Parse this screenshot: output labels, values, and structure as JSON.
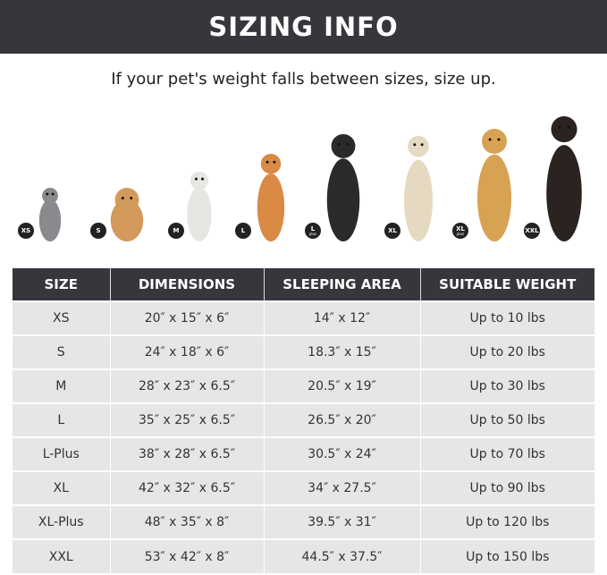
{
  "banner": {
    "title": "SIZING INFO"
  },
  "subtitle": "If your pet's weight falls between sizes, size up.",
  "pets": [
    {
      "badge": "XS",
      "plus": "",
      "animal": "cat",
      "color": "#8a8a8e"
    },
    {
      "badge": "S",
      "plus": "",
      "animal": "pomeranian",
      "color": "#d39a5c"
    },
    {
      "badge": "M",
      "plus": "",
      "animal": "french-bulldog",
      "color": "#e8e6e2"
    },
    {
      "badge": "L",
      "plus": "",
      "animal": "shiba-inu",
      "color": "#d98a45"
    },
    {
      "badge": "L",
      "plus": "plus",
      "animal": "border-collie",
      "color": "#2a2a2a"
    },
    {
      "badge": "XL",
      "plus": "",
      "animal": "labrador",
      "color": "#e6d9c2"
    },
    {
      "badge": "XL",
      "plus": "plus",
      "animal": "golden-retriever",
      "color": "#d8a253"
    },
    {
      "badge": "XXL",
      "plus": "",
      "animal": "doberman",
      "color": "#2b2320"
    }
  ],
  "table": {
    "headers": [
      "SIZE",
      "DIMENSIONS",
      "SLEEPING AREA",
      "SUITABLE WEIGHT"
    ],
    "rows": [
      [
        "XS",
        "20″ x 15″ x 6″",
        "14″ x 12″",
        "Up to 10 lbs"
      ],
      [
        "S",
        "24″ x 18″ x 6″",
        "18.3″ x 15″",
        "Up to 20 lbs"
      ],
      [
        "M",
        "28″ x 23″ x 6.5″",
        "20.5″ x 19″",
        "Up to 30 lbs"
      ],
      [
        "L",
        "35″ x 25″ x 6.5″",
        "26.5″ x 20″",
        "Up to 50 lbs"
      ],
      [
        "L-Plus",
        "38″ x 28″ x 6.5″",
        "30.5″ x 24″",
        "Up to 70 lbs"
      ],
      [
        "XL",
        "42″ x 32″ x 6.5″",
        "34″ x 27.5″",
        "Up to 90 lbs"
      ],
      [
        "XL-Plus",
        "48″ x 35″ x 8″",
        "39.5″ x 31″",
        "Up to 120 lbs"
      ],
      [
        "XXL",
        "53″ x 42″ x 8″",
        "44.5″ x 37.5″",
        "Up to 150 lbs"
      ]
    ]
  }
}
